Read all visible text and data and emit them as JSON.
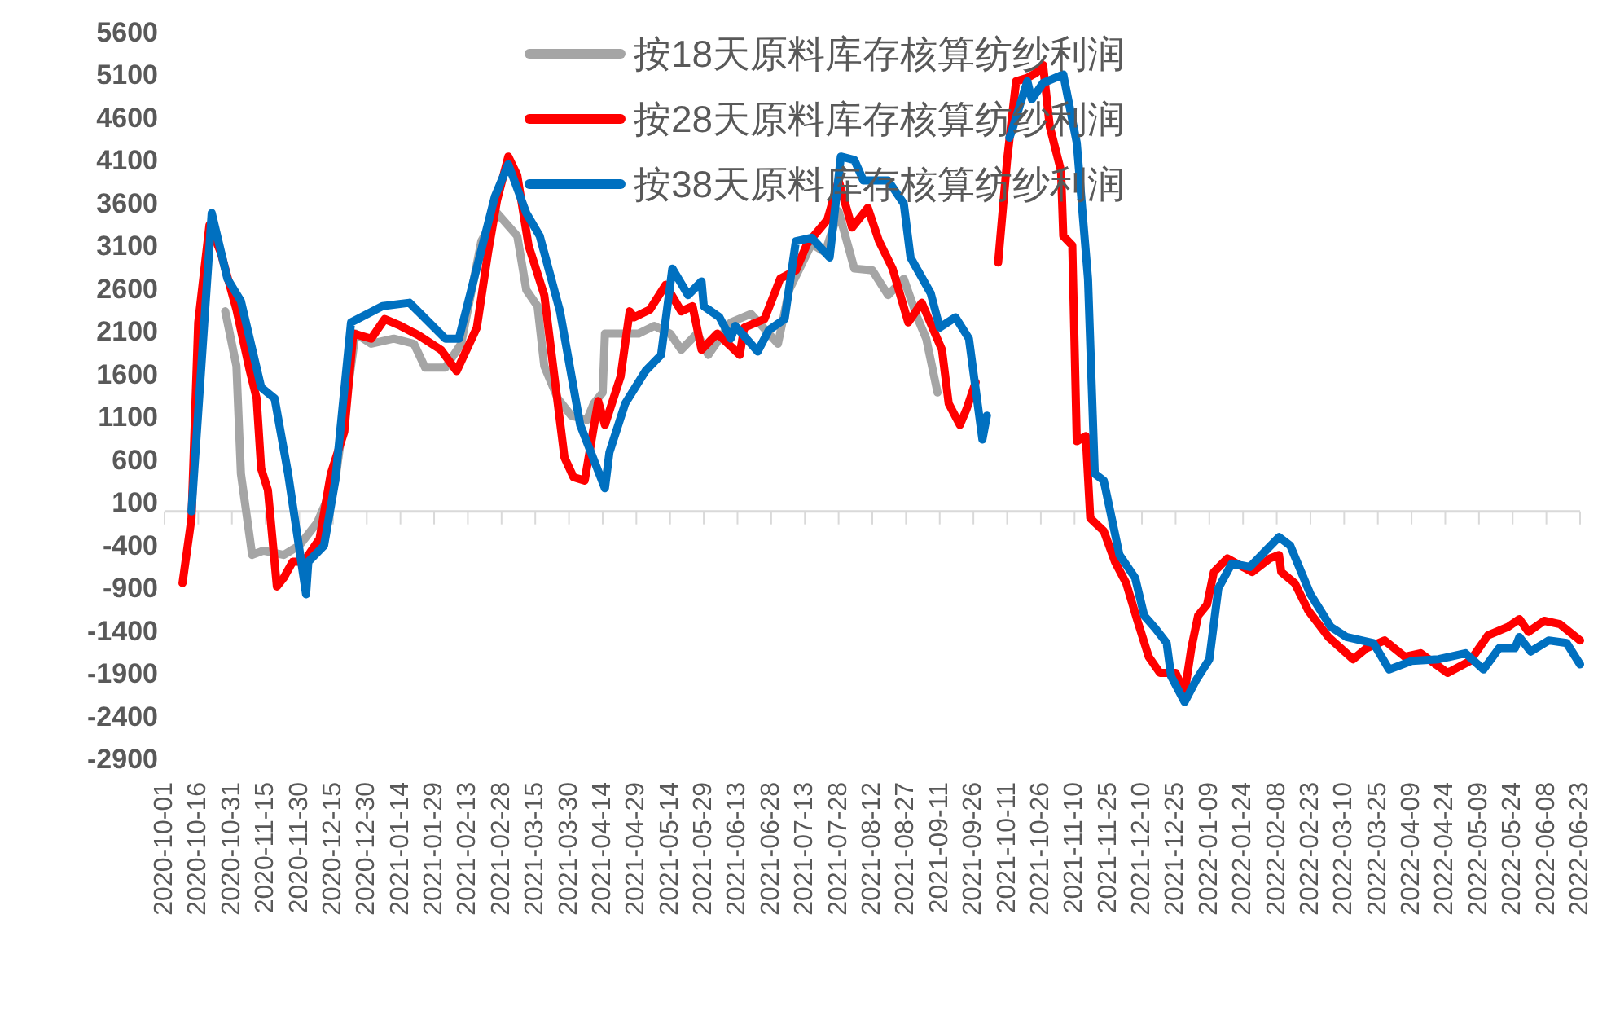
{
  "chart_data": {
    "type": "line",
    "legend": "top",
    "grid": false,
    "line_style": "solid",
    "ylim": [
      -2900,
      5600
    ],
    "yticks": [
      -2900,
      -2400,
      -1900,
      -1400,
      -900,
      -400,
      100,
      600,
      1100,
      1600,
      2100,
      2600,
      3100,
      3600,
      4100,
      4600,
      5100,
      5600
    ],
    "xlim": [
      "2020-10-01",
      "2022-06-23"
    ],
    "xticks": [
      "2020-10-01",
      "2020-10-16",
      "2020-10-31",
      "2020-11-15",
      "2020-11-30",
      "2020-12-15",
      "2020-12-30",
      "2021-01-14",
      "2021-01-29",
      "2021-02-13",
      "2021-02-28",
      "2021-03-15",
      "2021-03-30",
      "2021-04-14",
      "2021-04-29",
      "2021-05-14",
      "2021-05-29",
      "2021-06-13",
      "2021-06-28",
      "2021-07-13",
      "2021-07-28",
      "2021-08-12",
      "2021-08-27",
      "2021-09-11",
      "2021-09-26",
      "2021-10-11",
      "2021-10-26",
      "2021-11-10",
      "2021-11-25",
      "2021-12-10",
      "2021-12-25",
      "2022-01-09",
      "2022-01-24",
      "2022-02-08",
      "2022-02-23",
      "2022-03-10",
      "2022-03-25",
      "2022-04-09",
      "2022-04-24",
      "2022-05-09",
      "2022-05-24",
      "2022-06-08",
      "2022-06-23"
    ],
    "series": [
      {
        "name": "按18天原料库存核算纺纱利润",
        "color": "#a5a5a5",
        "x": [
          "2020-10-28",
          "2020-11-02",
          "2020-11-04",
          "2020-11-09",
          "2020-11-14",
          "2020-11-23",
          "2020-11-30",
          "2020-12-08",
          "2020-12-16",
          "2020-12-25",
          "2021-01-01",
          "2021-01-11",
          "2021-01-20",
          "2021-01-25",
          "2021-02-03",
          "2021-02-10",
          "2021-02-19",
          "2021-02-26",
          "2021-03-07",
          "2021-03-11",
          "2021-03-16",
          "2021-03-19",
          "2021-03-25",
          "2021-03-31",
          "2021-04-07",
          "2021-04-10",
          "2021-04-14",
          "2021-04-15",
          "2021-04-24",
          "2021-04-30",
          "2021-05-07",
          "2021-05-14",
          "2021-05-19",
          "2021-05-26",
          "2021-05-31",
          "2021-06-10",
          "2021-06-19",
          "2021-07-01",
          "2021-07-06",
          "2021-07-16",
          "2021-07-22",
          "2021-07-28",
          "2021-08-04",
          "2021-08-12",
          "2021-08-19",
          "2021-08-26",
          "2021-09-01",
          "2021-09-05",
          "2021-09-10"
        ],
        "values": [
          2340,
          1700,
          440,
          -510,
          -460,
          -510,
          -400,
          -130,
          360,
          2080,
          1960,
          2020,
          1960,
          1680,
          1680,
          1960,
          3160,
          3490,
          3220,
          2590,
          2400,
          1700,
          1320,
          1120,
          1070,
          1260,
          1390,
          2080,
          2080,
          2080,
          2170,
          2080,
          1890,
          2080,
          1830,
          2210,
          2310,
          1960,
          2590,
          3130,
          3030,
          3510,
          2840,
          2820,
          2530,
          2720,
          2270,
          2020,
          1390
        ]
      },
      {
        "name": "按28天原料库存核算纺纱利润",
        "color": "#ff0000",
        "x": [
          "2020-10-09",
          "2020-10-13",
          "2020-10-16",
          "2020-10-21",
          "2020-10-26",
          "2020-11-02",
          "2020-11-08",
          "2020-11-11",
          "2020-11-13",
          "2020-11-16",
          "2020-11-20",
          "2020-11-23",
          "2020-11-27",
          "2020-12-02",
          "2020-12-09",
          "2020-12-14",
          "2020-12-20",
          "2020-12-24",
          "2021-01-01",
          "2021-01-07",
          "2021-01-14",
          "2021-01-22",
          "2021-02-01",
          "2021-02-08",
          "2021-02-17",
          "2021-02-22",
          "2021-02-26",
          "2021-03-03",
          "2021-03-07",
          "2021-03-12",
          "2021-03-19",
          "2021-03-28",
          "2021-04-01",
          "2021-04-06",
          "2021-04-12",
          "2021-04-15",
          "2021-04-22",
          "2021-04-26",
          "2021-04-28",
          "2021-05-05",
          "2021-05-12",
          "2021-05-19",
          "2021-05-24",
          "2021-05-28",
          "2021-06-04",
          "2021-06-14",
          "2021-06-16",
          "2021-06-25",
          "2021-07-02",
          "2021-07-09",
          "2021-07-14",
          "2021-07-23",
          "2021-07-28",
          "2021-08-03",
          "2021-08-10",
          "2021-08-15",
          "2021-08-21",
          "2021-08-28",
          "2021-09-03",
          "2021-09-12",
          "2021-09-15",
          "2021-09-20",
          "2021-09-23",
          "2021-09-27",
          "2021-10-02",
          "2021-10-07",
          "2021-10-11",
          "2021-10-15",
          "2021-10-20",
          "2021-10-24",
          "2021-10-27",
          "2021-10-30",
          "2021-11-04",
          "2021-11-05",
          "2021-11-09",
          "2021-11-11",
          "2021-11-15",
          "2021-11-17",
          "2021-11-23",
          "2021-11-28",
          "2021-12-03",
          "2021-12-08",
          "2021-12-13",
          "2021-12-18",
          "2021-12-25",
          "2021-12-29",
          "2022-01-01",
          "2022-01-04",
          "2022-01-08",
          "2022-01-11",
          "2022-01-17",
          "2022-01-28",
          "2022-02-05",
          "2022-02-09",
          "2022-02-10",
          "2022-02-16",
          "2022-02-22",
          "2022-03-03",
          "2022-03-14",
          "2022-03-20",
          "2022-03-28",
          "2022-04-06",
          "2022-04-13",
          "2022-04-25",
          "2022-05-05",
          "2022-05-13",
          "2022-05-22",
          "2022-05-27",
          "2022-05-31",
          "2022-06-07",
          "2022-06-14",
          "2022-06-23"
        ],
        "values": [
          -840,
          -80,
          2210,
          3350,
          3030,
          2360,
          1640,
          1320,
          500,
          250,
          -880,
          -780,
          -590,
          -590,
          -320,
          440,
          930,
          2080,
          2020,
          2250,
          2170,
          2060,
          1890,
          1640,
          2150,
          3030,
          3640,
          4150,
          3930,
          3110,
          2530,
          630,
          400,
          360,
          1290,
          1010,
          1580,
          2340,
          2270,
          2360,
          2650,
          2340,
          2400,
          1890,
          2080,
          1830,
          2150,
          2250,
          2720,
          2820,
          3130,
          3410,
          3870,
          3320,
          3550,
          3160,
          2840,
          2210,
          2440,
          1890,
          1260,
          1010,
          1200,
          1510,
          null,
          2910,
          4110,
          5030,
          5070,
          5130,
          5220,
          4500,
          3980,
          3220,
          3110,
          820,
          880,
          -80,
          -230,
          -590,
          -840,
          -1280,
          -1700,
          -1890,
          -1890,
          -2120,
          -1600,
          -1220,
          -1090,
          -710,
          -550,
          -710,
          -550,
          -510,
          -710,
          -840,
          -1160,
          -1470,
          -1730,
          -1600,
          -1510,
          -1700,
          -1660,
          -1890,
          -1750,
          -1450,
          -1350,
          -1260,
          -1410,
          -1280,
          -1320,
          -1510
        ]
      },
      {
        "name": "按38天原料库存核算纺纱利润",
        "color": "#0070c0",
        "x": [
          "2020-10-13",
          "2020-10-22",
          "2020-10-29",
          "2020-11-04",
          "2020-11-13",
          "2020-11-19",
          "2020-11-25",
          "2020-12-03",
          "2020-12-04",
          "2020-12-11",
          "2020-12-16",
          "2020-12-23",
          "2021-01-06",
          "2021-01-18",
          "2021-02-03",
          "2021-02-09",
          "2021-02-25",
          "2021-03-03",
          "2021-03-11",
          "2021-03-17",
          "2021-03-26",
          "2021-04-04",
          "2021-04-15",
          "2021-04-17",
          "2021-04-24",
          "2021-05-03",
          "2021-05-10",
          "2021-05-15",
          "2021-05-22",
          "2021-05-28",
          "2021-05-29",
          "2021-06-05",
          "2021-06-10",
          "2021-06-12",
          "2021-06-22",
          "2021-06-27",
          "2021-07-04",
          "2021-07-09",
          "2021-07-16",
          "2021-07-24",
          "2021-07-29",
          "2021-08-04",
          "2021-08-08",
          "2021-08-19",
          "2021-08-26",
          "2021-08-29",
          "2021-09-07",
          "2021-09-11",
          "2021-09-18",
          "2021-09-24",
          "2021-09-30",
          "2021-10-02",
          "2021-10-07",
          "2021-10-12",
          "2021-10-13",
          "2021-10-20",
          "2021-10-22",
          "2021-10-27",
          "2021-11-05",
          "2021-11-11",
          "2021-11-16",
          "2021-11-19",
          "2021-11-23",
          "2021-11-30",
          "2021-12-07",
          "2021-12-11",
          "2021-12-16",
          "2021-12-21",
          "2021-12-23",
          "2021-12-29",
          "2022-01-03",
          "2022-01-09",
          "2022-01-13",
          "2022-01-19",
          "2022-01-27",
          "2022-02-09",
          "2022-02-14",
          "2022-02-23",
          "2022-03-04",
          "2022-03-11",
          "2022-03-23",
          "2022-03-30",
          "2022-04-09",
          "2022-04-21",
          "2022-05-03",
          "2022-05-11",
          "2022-05-18",
          "2022-05-25",
          "2022-05-27",
          "2022-06-01",
          "2022-06-09",
          "2022-06-17",
          "2022-06-23"
        ],
        "values": [
          0,
          3490,
          2720,
          2460,
          1450,
          1320,
          440,
          -970,
          -590,
          -400,
          360,
          2210,
          2400,
          2440,
          2020,
          2020,
          3680,
          4060,
          3490,
          3220,
          2340,
          1010,
          270,
          690,
          1260,
          1640,
          1830,
          2840,
          2530,
          2690,
          2400,
          2270,
          2020,
          2170,
          1870,
          2120,
          2250,
          3160,
          3200,
          2970,
          4150,
          4110,
          3870,
          3870,
          3600,
          2970,
          2550,
          2150,
          2270,
          2020,
          840,
          1120,
          null,
          4370,
          4440,
          5030,
          4820,
          5010,
          5110,
          4310,
          2720,
          440,
          360,
          -510,
          -780,
          -1220,
          -1370,
          -1540,
          -1930,
          -2230,
          -1980,
          -1730,
          -900,
          -610,
          -650,
          -300,
          -400,
          -970,
          -1350,
          -1470,
          -1540,
          -1850,
          -1750,
          -1730,
          -1660,
          -1850,
          -1600,
          -1600,
          -1470,
          -1640,
          -1510,
          -1540,
          -1790
        ]
      }
    ]
  }
}
